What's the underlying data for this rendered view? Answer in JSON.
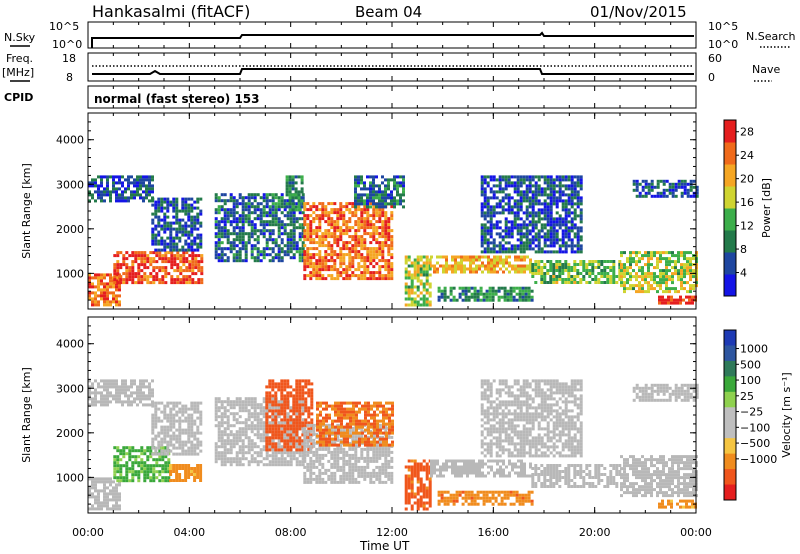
{
  "header": {
    "station": "Hankasalmi (fitACF)",
    "beam": "Beam 04",
    "date": "01/Nov/2015"
  },
  "top_panels": {
    "nsky_label": "N.Sky",
    "nsky_ticks": [
      "10^5",
      "10^0"
    ],
    "nsearch_label": "N.Search",
    "nsearch_ticks": [
      "10^5",
      "10^0"
    ],
    "freq_label": "Freq.",
    "freq_unit": "[MHz]",
    "freq_ticks": [
      "18",
      "8"
    ],
    "nave_label": "Nave",
    "nave_ticks": [
      "60",
      "0"
    ],
    "cpid_label": "CPID",
    "cpid_text": "normal (fast stereo) 153"
  },
  "colors": {
    "power_scale": [
      "#1414e6",
      "#1e46a0",
      "#237a4a",
      "#3cae4a",
      "#cfd431",
      "#f5a623",
      "#f06a1a",
      "#e51e1e"
    ],
    "velocity_scale": [
      "#e51e1e",
      "#f0561c",
      "#f08c1e",
      "#f5c542",
      "#bfbfbf",
      "#bfbfbf",
      "#8fd14f",
      "#3aa83a",
      "#2f7a5a",
      "#2e56a0",
      "#1e3ab4"
    ],
    "ground_scatter": "#b8b8b8"
  },
  "chart_data": [
    {
      "type": "heatmap",
      "title": "",
      "xlabel": "Time UT",
      "ylabel": "Slant Range [km]",
      "xlim": [
        "00:00",
        "24:00"
      ],
      "ylim": [
        200,
        4600
      ],
      "x_ticks": [
        "00:00",
        "04:00",
        "08:00",
        "12:00",
        "16:00",
        "20:00",
        "00:00"
      ],
      "y_ticks": [
        "1000",
        "2000",
        "3000",
        "4000"
      ],
      "colorbar": {
        "label": "Power [dB]",
        "ticks": [
          "4",
          "8",
          "12",
          "16",
          "20",
          "24",
          "28"
        ],
        "range": [
          0,
          30
        ]
      },
      "echo_regions": [
        {
          "t_start": 0.0,
          "t_end": 1.2,
          "r_start": 300,
          "r_end": 1000,
          "value_db": 24
        },
        {
          "t_start": 0.0,
          "t_end": 2.5,
          "r_start": 2600,
          "r_end": 3200,
          "value_db": 6
        },
        {
          "t_start": 1.0,
          "t_end": 4.5,
          "r_start": 800,
          "r_end": 1500,
          "value_db": 26
        },
        {
          "t_start": 2.5,
          "t_end": 4.5,
          "r_start": 1500,
          "r_end": 2700,
          "value_db": 6
        },
        {
          "t_start": 5.0,
          "t_end": 8.5,
          "r_start": 1300,
          "r_end": 2800,
          "value_db": 7
        },
        {
          "t_start": 7.8,
          "t_end": 8.5,
          "r_start": 2400,
          "r_end": 3200,
          "value_db": 10
        },
        {
          "t_start": 8.5,
          "t_end": 12.0,
          "r_start": 900,
          "r_end": 2600,
          "value_db": 24
        },
        {
          "t_start": 10.5,
          "t_end": 12.5,
          "r_start": 2500,
          "r_end": 3200,
          "value_db": 8
        },
        {
          "t_start": 12.5,
          "t_end": 13.5,
          "r_start": 300,
          "r_end": 1400,
          "value_db": 16
        },
        {
          "t_start": 13.5,
          "t_end": 17.5,
          "r_start": 1000,
          "r_end": 1400,
          "value_db": 20
        },
        {
          "t_start": 13.8,
          "t_end": 17.5,
          "r_start": 400,
          "r_end": 700,
          "value_db": 10
        },
        {
          "t_start": 15.5,
          "t_end": 19.5,
          "r_start": 1500,
          "r_end": 3200,
          "value_db": 6
        },
        {
          "t_start": 17.5,
          "t_end": 21.0,
          "r_start": 800,
          "r_end": 1300,
          "value_db": 14
        },
        {
          "t_start": 21.0,
          "t_end": 24.0,
          "r_start": 600,
          "r_end": 1500,
          "value_db": 16
        },
        {
          "t_start": 22.5,
          "t_end": 24.0,
          "r_start": 300,
          "r_end": 500,
          "value_db": 28
        },
        {
          "t_start": 21.5,
          "t_end": 24.0,
          "r_start": 2700,
          "r_end": 3100,
          "value_db": 6
        }
      ]
    },
    {
      "type": "heatmap",
      "title": "",
      "xlabel": "Time UT",
      "ylabel": "Slant Range [km]",
      "xlim": [
        "00:00",
        "24:00"
      ],
      "ylim": [
        200,
        4600
      ],
      "x_ticks": [
        "00:00",
        "04:00",
        "08:00",
        "12:00",
        "16:00",
        "20:00",
        "00:00"
      ],
      "y_ticks": [
        "1000",
        "2000",
        "3000",
        "4000"
      ],
      "colorbar": {
        "label": "Velocity [m s⁻¹]",
        "ticks": [
          "1000",
          "500",
          "100",
          "25",
          "−25",
          "−100",
          "−500",
          "−1000"
        ]
      },
      "echo_regions": [
        {
          "t_start": 0.0,
          "t_end": 1.2,
          "r_start": 300,
          "r_end": 1000,
          "kind": "ground"
        },
        {
          "t_start": 0.0,
          "t_end": 2.5,
          "r_start": 2600,
          "r_end": 3200,
          "kind": "ground"
        },
        {
          "t_start": 1.0,
          "t_end": 3.2,
          "r_start": 900,
          "r_end": 1700,
          "value_ms": 150
        },
        {
          "t_start": 3.2,
          "t_end": 4.5,
          "r_start": 900,
          "r_end": 1300,
          "value_ms": -150
        },
        {
          "t_start": 2.5,
          "t_end": 4.5,
          "r_start": 1500,
          "r_end": 2700,
          "kind": "ground"
        },
        {
          "t_start": 5.0,
          "t_end": 8.5,
          "r_start": 1300,
          "r_end": 2800,
          "kind": "ground"
        },
        {
          "t_start": 7.0,
          "t_end": 8.8,
          "r_start": 1600,
          "r_end": 3200,
          "value_ms": -500
        },
        {
          "t_start": 8.5,
          "t_end": 12.0,
          "r_start": 900,
          "r_end": 2200,
          "kind": "ground"
        },
        {
          "t_start": 9.0,
          "t_end": 12.0,
          "r_start": 1700,
          "r_end": 2700,
          "value_ms": -300
        },
        {
          "t_start": 12.5,
          "t_end": 13.5,
          "r_start": 300,
          "r_end": 1400,
          "value_ms": -400
        },
        {
          "t_start": 13.5,
          "t_end": 17.5,
          "r_start": 1000,
          "r_end": 1400,
          "kind": "ground"
        },
        {
          "t_start": 13.8,
          "t_end": 17.5,
          "r_start": 400,
          "r_end": 700,
          "value_ms": -200
        },
        {
          "t_start": 15.5,
          "t_end": 19.5,
          "r_start": 1500,
          "r_end": 3200,
          "kind": "ground"
        },
        {
          "t_start": 17.5,
          "t_end": 21.0,
          "r_start": 800,
          "r_end": 1300,
          "kind": "ground"
        },
        {
          "t_start": 21.0,
          "t_end": 24.0,
          "r_start": 600,
          "r_end": 1500,
          "kind": "ground"
        },
        {
          "t_start": 22.5,
          "t_end": 24.0,
          "r_start": 300,
          "r_end": 500,
          "value_ms": -150
        },
        {
          "t_start": 21.5,
          "t_end": 24.0,
          "r_start": 2700,
          "r_end": 3100,
          "kind": "ground"
        }
      ]
    }
  ]
}
